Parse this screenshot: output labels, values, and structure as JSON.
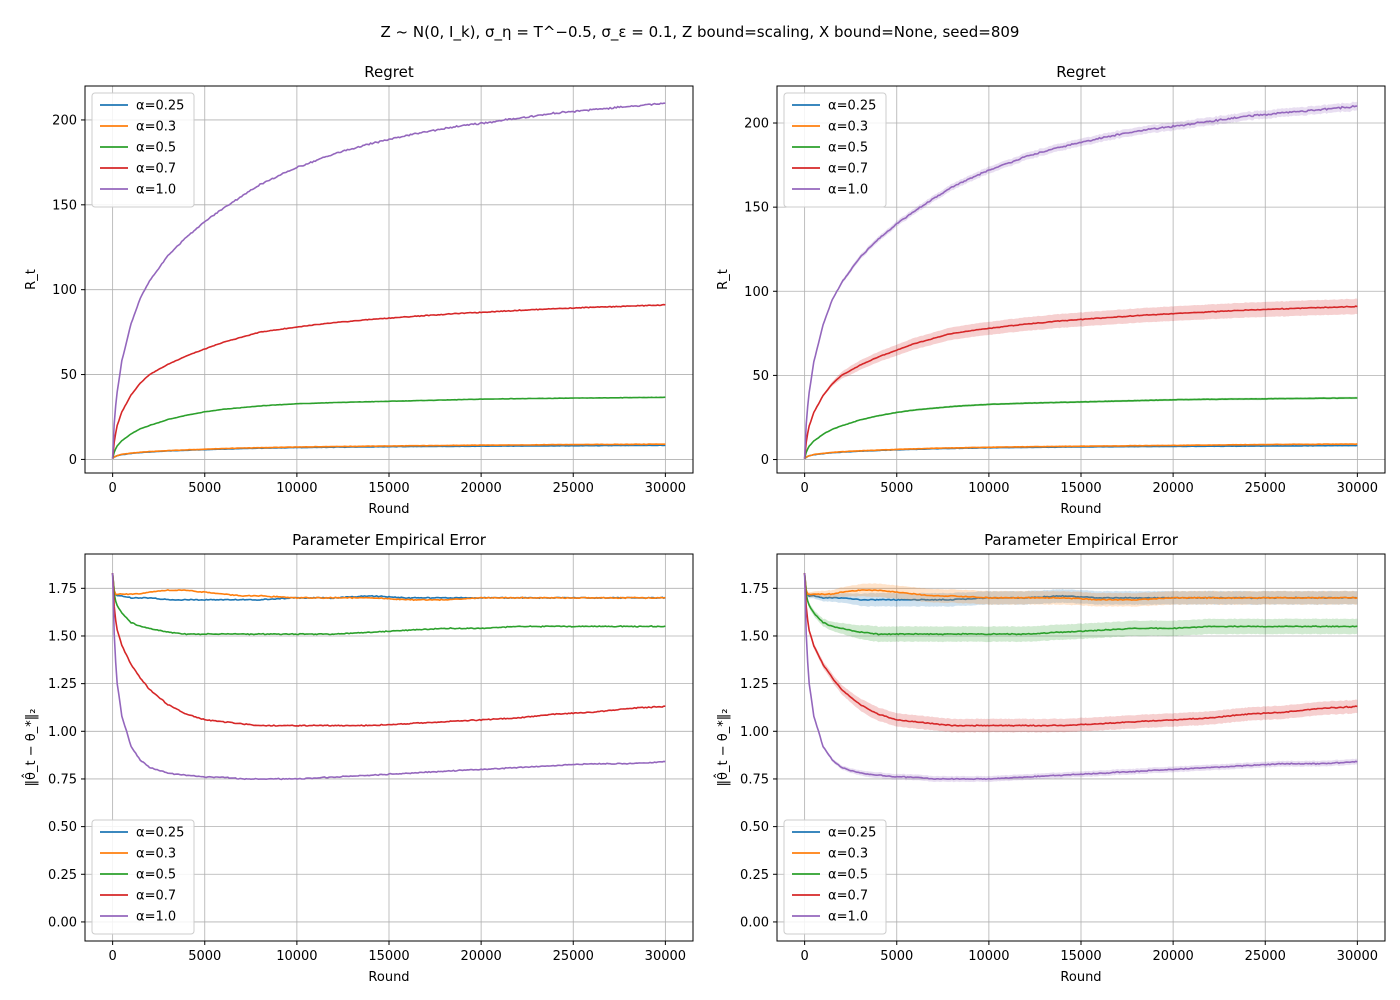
{
  "suptitle": "Z ~ N(0, I_k), σ_η = T^−0.5, σ_ε = 0.1, Z bound=scaling, X bound=None, seed=809",
  "colors": {
    "alpha_0.25": "#1f77b4",
    "alpha_0.3": "#ff7f0e",
    "alpha_0.5": "#2ca02c",
    "alpha_0.7": "#d62728",
    "alpha_1.0": "#9467bd"
  },
  "chart_data": [
    {
      "type": "line",
      "title": "Regret",
      "xlabel": "Round",
      "ylabel": "R_t",
      "xlim": [
        -1500,
        31500
      ],
      "ylim": [
        -8,
        220
      ],
      "xticks": [
        0,
        5000,
        10000,
        15000,
        20000,
        25000,
        30000
      ],
      "yticks": [
        0,
        50,
        100,
        150,
        200
      ],
      "grid": true,
      "legend": "upper left",
      "band": false,
      "x": [
        0,
        100,
        250,
        500,
        1000,
        1500,
        2000,
        3000,
        4000,
        5000,
        6000,
        7000,
        8000,
        10000,
        12000,
        14000,
        16000,
        18000,
        20000,
        22000,
        24000,
        26000,
        28000,
        30000
      ],
      "series": [
        {
          "name": "α=0.25",
          "color": "#1f77b4",
          "values": [
            0.5,
            1.5,
            2.2,
            2.8,
            3.5,
            4.0,
            4.4,
            5.0,
            5.4,
            5.8,
            6.1,
            6.4,
            6.6,
            7.0,
            7.2,
            7.4,
            7.6,
            7.7,
            7.8,
            7.9,
            8.0,
            8.1,
            8.2,
            8.3
          ]
        },
        {
          "name": "α=0.3",
          "color": "#ff7f0e",
          "values": [
            0.5,
            1.6,
            2.3,
            3.0,
            3.7,
            4.2,
            4.6,
            5.2,
            5.6,
            6.0,
            6.4,
            6.7,
            6.9,
            7.3,
            7.6,
            7.8,
            8.0,
            8.2,
            8.4,
            8.5,
            8.7,
            8.8,
            8.9,
            9.0
          ]
        },
        {
          "name": "α=0.5",
          "color": "#2ca02c",
          "values": [
            0.5,
            5,
            8,
            11,
            15,
            18,
            20,
            23.5,
            26,
            28,
            29.5,
            30.5,
            31.5,
            32.8,
            33.5,
            34,
            34.5,
            35,
            35.5,
            35.8,
            36,
            36.2,
            36.4,
            36.6
          ]
        },
        {
          "name": "α=0.7",
          "color": "#d62728",
          "values": [
            0.5,
            12,
            20,
            28,
            38,
            45,
            50,
            56,
            61,
            65,
            69,
            72,
            75,
            78,
            80.5,
            82.5,
            84,
            85.5,
            86.7,
            87.8,
            88.8,
            89.6,
            90.3,
            91
          ]
        },
        {
          "name": "α=1.0",
          "color": "#9467bd",
          "values": [
            0.5,
            25,
            40,
            58,
            80,
            95,
            105,
            120,
            131,
            140,
            148,
            155,
            162,
            172,
            180,
            186,
            191,
            195,
            198,
            201,
            204,
            206,
            208,
            210
          ]
        }
      ]
    },
    {
      "type": "line",
      "title": "Regret",
      "xlabel": "Round",
      "ylabel": "R_t",
      "xlim": [
        -1500,
        31500
      ],
      "ylim": [
        -8,
        222
      ],
      "xticks": [
        0,
        5000,
        10000,
        15000,
        20000,
        25000,
        30000
      ],
      "yticks": [
        0,
        50,
        100,
        150,
        200
      ],
      "grid": true,
      "legend": "upper left",
      "band": true,
      "x": [
        0,
        100,
        250,
        500,
        1000,
        1500,
        2000,
        3000,
        4000,
        5000,
        6000,
        7000,
        8000,
        10000,
        12000,
        14000,
        16000,
        18000,
        20000,
        22000,
        24000,
        26000,
        28000,
        30000
      ],
      "series": [
        {
          "name": "α=0.25",
          "color": "#1f77b4",
          "values": [
            0.5,
            1.5,
            2.2,
            2.8,
            3.5,
            4.0,
            4.4,
            5.0,
            5.4,
            5.8,
            6.1,
            6.4,
            6.6,
            7.0,
            7.2,
            7.4,
            7.6,
            7.7,
            7.8,
            7.9,
            8.0,
            8.1,
            8.2,
            8.3
          ]
        },
        {
          "name": "α=0.3",
          "color": "#ff7f0e",
          "values": [
            0.5,
            1.6,
            2.3,
            3.0,
            3.7,
            4.2,
            4.6,
            5.2,
            5.6,
            6.0,
            6.4,
            6.7,
            6.9,
            7.3,
            7.6,
            7.8,
            8.0,
            8.2,
            8.4,
            8.6,
            8.8,
            9.0,
            9.1,
            9.2
          ]
        },
        {
          "name": "α=0.5",
          "color": "#2ca02c",
          "values": [
            0.5,
            5,
            8,
            11,
            15,
            18,
            20,
            23.5,
            26,
            28,
            29.5,
            30.5,
            31.5,
            32.8,
            33.5,
            34,
            34.5,
            35,
            35.5,
            35.8,
            36,
            36.2,
            36.4,
            36.6
          ]
        },
        {
          "name": "α=0.7",
          "color": "#d62728",
          "values": [
            0.5,
            12,
            20,
            28,
            38,
            45,
            50,
            56,
            61,
            65,
            69,
            72,
            75,
            78,
            80.5,
            82.5,
            84,
            85.5,
            86.7,
            87.8,
            88.8,
            89.6,
            90.3,
            91
          ]
        },
        {
          "name": "α=1.0",
          "color": "#9467bd",
          "values": [
            0.5,
            25,
            40,
            58,
            80,
            95,
            105,
            120,
            131,
            140,
            148,
            155,
            162,
            172,
            180,
            186,
            191,
            195,
            198,
            201,
            204,
            206,
            208,
            210
          ]
        }
      ]
    },
    {
      "type": "line",
      "title": "Parameter Empirical Error",
      "xlabel": "Round",
      "ylabel": "‖θ̂_t − θ_*‖₂",
      "xlim": [
        -1500,
        31500
      ],
      "ylim": [
        -0.1,
        1.93
      ],
      "xticks": [
        0,
        5000,
        10000,
        15000,
        20000,
        25000,
        30000
      ],
      "yticks": [
        0,
        0.25,
        0.5,
        0.75,
        1.0,
        1.25,
        1.5,
        1.75
      ],
      "grid": true,
      "legend": "lower left",
      "band": false,
      "x": [
        0,
        100,
        250,
        500,
        1000,
        1500,
        2000,
        3000,
        4000,
        5000,
        6000,
        7000,
        8000,
        10000,
        12000,
        14000,
        16000,
        18000,
        20000,
        22000,
        24000,
        26000,
        28000,
        30000
      ],
      "series": [
        {
          "name": "α=0.25",
          "color": "#1f77b4",
          "values": [
            1.83,
            1.72,
            1.71,
            1.71,
            1.7,
            1.7,
            1.7,
            1.69,
            1.69,
            1.69,
            1.69,
            1.69,
            1.69,
            1.7,
            1.7,
            1.71,
            1.7,
            1.7,
            1.7,
            1.7,
            1.7,
            1.7,
            1.7,
            1.7
          ]
        },
        {
          "name": "α=0.3",
          "color": "#ff7f0e",
          "values": [
            1.83,
            1.72,
            1.72,
            1.72,
            1.72,
            1.72,
            1.73,
            1.74,
            1.74,
            1.73,
            1.72,
            1.71,
            1.71,
            1.7,
            1.7,
            1.7,
            1.69,
            1.69,
            1.7,
            1.7,
            1.7,
            1.7,
            1.7,
            1.7
          ]
        },
        {
          "name": "α=0.5",
          "color": "#2ca02c",
          "values": [
            1.83,
            1.7,
            1.66,
            1.62,
            1.57,
            1.55,
            1.54,
            1.52,
            1.51,
            1.51,
            1.51,
            1.51,
            1.51,
            1.51,
            1.51,
            1.52,
            1.53,
            1.54,
            1.54,
            1.55,
            1.55,
            1.55,
            1.55,
            1.55
          ]
        },
        {
          "name": "α=0.7",
          "color": "#d62728",
          "values": [
            1.83,
            1.62,
            1.53,
            1.45,
            1.35,
            1.28,
            1.22,
            1.14,
            1.09,
            1.06,
            1.05,
            1.04,
            1.03,
            1.03,
            1.03,
            1.03,
            1.04,
            1.05,
            1.06,
            1.07,
            1.09,
            1.1,
            1.12,
            1.13
          ]
        },
        {
          "name": "α=1.0",
          "color": "#9467bd",
          "values": [
            1.83,
            1.45,
            1.25,
            1.08,
            0.92,
            0.85,
            0.81,
            0.78,
            0.77,
            0.76,
            0.76,
            0.75,
            0.75,
            0.75,
            0.76,
            0.77,
            0.78,
            0.79,
            0.8,
            0.81,
            0.82,
            0.83,
            0.83,
            0.84
          ]
        }
      ]
    },
    {
      "type": "line",
      "title": "Parameter Empirical Error",
      "xlabel": "Round",
      "ylabel": "‖θ̂_t − θ_*‖₂",
      "xlim": [
        -1500,
        31500
      ],
      "ylim": [
        -0.1,
        1.93
      ],
      "xticks": [
        0,
        5000,
        10000,
        15000,
        20000,
        25000,
        30000
      ],
      "yticks": [
        0,
        0.25,
        0.5,
        0.75,
        1.0,
        1.25,
        1.5,
        1.75
      ],
      "grid": true,
      "legend": "lower left",
      "band": true,
      "x": [
        0,
        100,
        250,
        500,
        1000,
        1500,
        2000,
        3000,
        4000,
        5000,
        6000,
        7000,
        8000,
        10000,
        12000,
        14000,
        16000,
        18000,
        20000,
        22000,
        24000,
        26000,
        28000,
        30000
      ],
      "series": [
        {
          "name": "α=0.25",
          "color": "#1f77b4",
          "values": [
            1.83,
            1.72,
            1.71,
            1.71,
            1.7,
            1.7,
            1.7,
            1.69,
            1.69,
            1.69,
            1.69,
            1.69,
            1.69,
            1.7,
            1.7,
            1.71,
            1.7,
            1.7,
            1.7,
            1.7,
            1.7,
            1.7,
            1.7,
            1.7
          ]
        },
        {
          "name": "α=0.3",
          "color": "#ff7f0e",
          "values": [
            1.83,
            1.72,
            1.72,
            1.72,
            1.72,
            1.72,
            1.73,
            1.74,
            1.74,
            1.73,
            1.72,
            1.71,
            1.71,
            1.7,
            1.7,
            1.7,
            1.69,
            1.69,
            1.7,
            1.7,
            1.7,
            1.7,
            1.7,
            1.7
          ]
        },
        {
          "name": "α=0.5",
          "color": "#2ca02c",
          "values": [
            1.83,
            1.7,
            1.66,
            1.62,
            1.57,
            1.55,
            1.54,
            1.52,
            1.51,
            1.51,
            1.51,
            1.51,
            1.51,
            1.51,
            1.51,
            1.52,
            1.53,
            1.54,
            1.54,
            1.55,
            1.55,
            1.55,
            1.55,
            1.55
          ]
        },
        {
          "name": "α=0.7",
          "color": "#d62728",
          "values": [
            1.83,
            1.62,
            1.53,
            1.45,
            1.35,
            1.28,
            1.22,
            1.14,
            1.09,
            1.06,
            1.05,
            1.04,
            1.03,
            1.03,
            1.03,
            1.03,
            1.04,
            1.05,
            1.06,
            1.07,
            1.09,
            1.1,
            1.12,
            1.13
          ]
        },
        {
          "name": "α=1.0",
          "color": "#9467bd",
          "values": [
            1.83,
            1.45,
            1.25,
            1.08,
            0.92,
            0.85,
            0.81,
            0.78,
            0.77,
            0.76,
            0.76,
            0.75,
            0.75,
            0.75,
            0.76,
            0.77,
            0.78,
            0.79,
            0.8,
            0.81,
            0.82,
            0.83,
            0.83,
            0.84
          ]
        }
      ]
    }
  ]
}
